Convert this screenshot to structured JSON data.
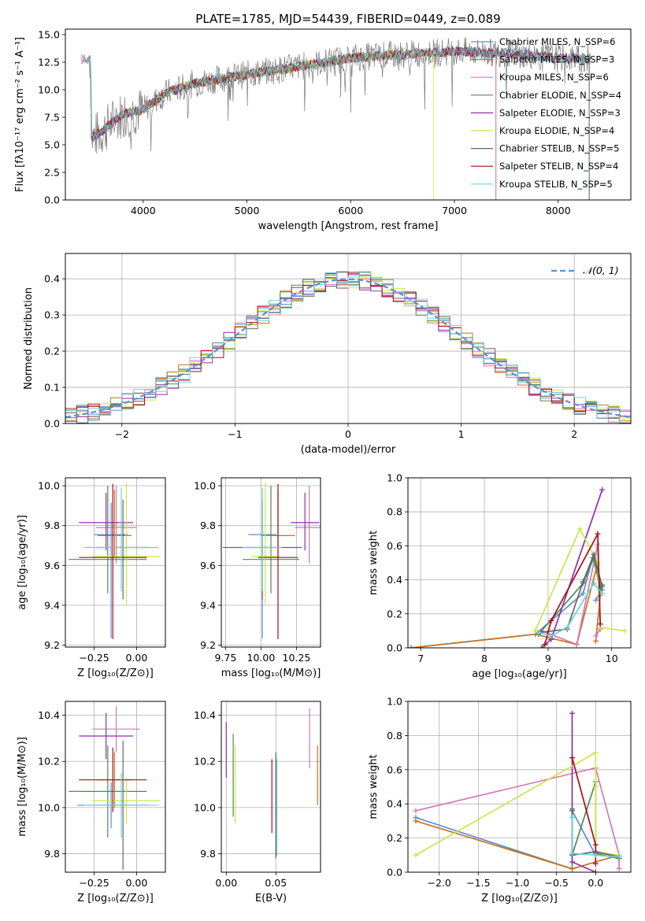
{
  "figure_title": "PLATE=1785, MJD=54439, FIBERID=0449, z=0.089",
  "colors": [
    "#5a8fd6",
    "#c9731e",
    "#d478b5",
    "#4f8c4f",
    "#8f2faa",
    "#c9e84a",
    "#666666",
    "#a50f15",
    "#6fd0d6"
  ],
  "chart_data": [
    {
      "id": "spectrum",
      "type": "line",
      "title": "PLATE=1785, MJD=54439, FIBERID=0449, z=0.089",
      "xlabel": "wavelength [Angstrom, rest frame]",
      "ylabel": "Flux [fλ10⁻¹⁷ erg cm⁻² s⁻¹ A⁻¹]",
      "xlim": [
        3250,
        8700
      ],
      "ylim": [
        0,
        15.5
      ],
      "xticks": [
        4000,
        5000,
        6000,
        7000,
        8000
      ],
      "yticks": [
        0.0,
        2.5,
        5.0,
        7.5,
        10.0,
        12.5,
        15.0
      ],
      "legend_position": "top-right",
      "continuum": {
        "x": [
          3500,
          3600,
          3700,
          3800,
          3900,
          4000,
          4200,
          4500,
          5000,
          5500,
          6000,
          6500,
          7000,
          7500,
          8000,
          8300
        ],
        "y": [
          5.6,
          6.2,
          7.0,
          7.8,
          8.0,
          8.2,
          9.6,
          10.6,
          11.4,
          12.1,
          12.9,
          13.2,
          13.5,
          13.3,
          12.9,
          12.8
        ]
      },
      "series": [
        {
          "name": "Chabrier MILES, N_SSP=6"
        },
        {
          "name": "Salpeter MILES, N_SSP=3"
        },
        {
          "name": "Kroupa MILES, N_SSP=6"
        },
        {
          "name": "Chabrier ELODIE, N_SSP=4"
        },
        {
          "name": "Salpeter ELODIE, N_SSP=3"
        },
        {
          "name": "Kroupa ELODIE, N_SSP=4"
        },
        {
          "name": "Chabrier STELIB, N_SSP=5"
        },
        {
          "name": "Salpeter STELIB, N_SSP=4"
        },
        {
          "name": "Kroupa STELIB, N_SSP=5"
        }
      ],
      "model_endpoints": [
        {
          "x_start": 3400,
          "x_end": 8300
        },
        {
          "x_start": 3400,
          "x_end": 7400
        },
        {
          "x_start": 3400,
          "x_end": 7400
        },
        {
          "x_start": 3500,
          "x_end": 8300
        },
        {
          "x_start": 3500,
          "x_end": 8300
        },
        {
          "x_start": 3900,
          "x_end": 6800
        },
        {
          "x_start": 3450,
          "x_end": 8300
        },
        {
          "x_start": 3500,
          "x_end": 8300
        },
        {
          "x_start": 3450,
          "x_end": 8300
        }
      ]
    },
    {
      "id": "residuals",
      "type": "line",
      "xlabel": "(data-model)/error",
      "ylabel": "Normed distribution",
      "xlim": [
        -2.5,
        2.5
      ],
      "ylim": [
        0,
        0.47
      ],
      "xticks": [
        -2,
        -1,
        0,
        1,
        2
      ],
      "yticks": [
        0.0,
        0.1,
        0.2,
        0.3,
        0.4
      ],
      "grid": true,
      "legend_position": "top-right",
      "reference_curve": {
        "name": "𝒩(0, 1)",
        "mean": 0,
        "sigma": 1
      },
      "bin_width": 0.1
    },
    {
      "id": "age_vs_Z",
      "type": "scatter",
      "xlabel": "Z [log₁₀(Z/Z⊙)]",
      "ylabel": "age  [log₁₀(age/yr)]",
      "xlim": [
        -0.42,
        0.17
      ],
      "ylim": [
        9.19,
        10.04
      ],
      "xticks": [
        -0.25,
        0.0
      ],
      "xtick_labels": [
        "−0.25",
        "0.00"
      ],
      "yticks": [
        9.2,
        9.4,
        9.6,
        9.8,
        10.0
      ],
      "grid": true,
      "points": [
        {
          "x": -0.15,
          "y": 9.755,
          "xerr": 0.1,
          "yerr": [
            0.52,
            0.16
          ]
        },
        {
          "x": -0.13,
          "y": 9.75,
          "xerr": 0.1,
          "yerr": [
            0.11,
            0.23
          ]
        },
        {
          "x": -0.12,
          "y": 9.79,
          "xerr": 0.12,
          "yerr": [
            0.18,
            0.21
          ]
        },
        {
          "x": -0.17,
          "y": 9.63,
          "xerr": 0.23,
          "yerr": [
            0.17,
            0.37
          ]
        },
        {
          "x": -0.18,
          "y": 9.815,
          "xerr": 0.16,
          "yerr": [
            0.14,
            0.15
          ]
        },
        {
          "x": -0.06,
          "y": 9.645,
          "xerr": 0.2,
          "yerr": [
            0.24,
            0.37
          ]
        },
        {
          "x": -0.08,
          "y": 9.69,
          "xerr": 0.16,
          "yerr": [
            0.26,
            0.24
          ]
        },
        {
          "x": -0.14,
          "y": 9.64,
          "xerr": 0.2,
          "yerr": [
            0.41,
            0.37
          ]
        },
        {
          "x": -0.09,
          "y": 9.69,
          "xerr": 0.22,
          "yerr": [
            0.22,
            0.3
          ]
        }
      ]
    },
    {
      "id": "age_vs_mass",
      "type": "scatter",
      "xlabel": "mass [log₁₀(M/M⊙)]",
      "xlim": [
        9.72,
        10.42
      ],
      "ylim": [
        9.19,
        10.04
      ],
      "xticks": [
        9.75,
        10.0,
        10.25
      ],
      "yticks": [
        9.2,
        9.4,
        9.6,
        9.8,
        10.0
      ],
      "grid": true,
      "points": [
        {
          "x": 10.01,
          "y": 9.755,
          "xerr": 0.1,
          "yerr": [
            0.52,
            0.16
          ]
        },
        {
          "x": 10.12,
          "y": 9.75,
          "xerr": 0.12,
          "yerr": [
            0.11,
            0.23
          ]
        },
        {
          "x": 10.34,
          "y": 9.79,
          "xerr": 0.1,
          "yerr": [
            0.18,
            0.21
          ]
        },
        {
          "x": 10.07,
          "y": 9.63,
          "xerr": 0.2,
          "yerr": [
            0.17,
            0.37
          ]
        },
        {
          "x": 10.31,
          "y": 9.815,
          "xerr": 0.1,
          "yerr": [
            0.14,
            0.15
          ]
        },
        {
          "x": 10.03,
          "y": 9.645,
          "xerr": 0.1,
          "yerr": [
            0.24,
            0.37
          ]
        },
        {
          "x": 10.01,
          "y": 9.69,
          "xerr": 0.28,
          "yerr": [
            0.26,
            0.24
          ]
        },
        {
          "x": 10.12,
          "y": 9.64,
          "xerr": 0.14,
          "yerr": [
            0.41,
            0.37
          ]
        },
        {
          "x": 10.01,
          "y": 9.69,
          "xerr": 0.14,
          "yerr": [
            0.22,
            0.3
          ]
        }
      ]
    },
    {
      "id": "mass_weight_vs_age",
      "type": "line",
      "xlabel": "age  [log₁₀(age/yr)]",
      "ylabel": "mass weight",
      "xlim": [
        6.8,
        10.3
      ],
      "ylim": [
        0,
        1.0
      ],
      "xticks": [
        7,
        8,
        9,
        10
      ],
      "yticks": [
        0.0,
        0.2,
        0.4,
        0.6,
        0.8,
        1.0
      ],
      "grid": true,
      "series": [
        {
          "x": [
            6.85,
            8.8,
            9.55,
            9.7,
            9.85,
            9.75
          ],
          "y": [
            0.0,
            0.08,
            0.32,
            0.53,
            0.34,
            0.28
          ]
        },
        {
          "x": [
            6.85,
            8.8,
            9.45,
            9.78,
            9.82,
            9.75
          ],
          "y": [
            0.0,
            0.08,
            0.02,
            0.5,
            0.31,
            0.04
          ]
        },
        {
          "x": [
            8.9,
            9.45,
            9.78,
            9.82,
            9.75
          ],
          "y": [
            0.1,
            0.02,
            0.61,
            0.11,
            0.07
          ]
        },
        {
          "x": [
            8.85,
            9.55,
            9.72,
            9.82,
            9.85
          ],
          "y": [
            0.08,
            0.38,
            0.53,
            0.34,
            0.37
          ]
        },
        {
          "x": [
            8.9,
            9.05,
            9.85
          ],
          "y": [
            0.0,
            0.05,
            0.93
          ]
        },
        {
          "x": [
            8.8,
            9.5,
            9.78,
            9.82,
            10.2
          ],
          "y": [
            0.1,
            0.7,
            0.5,
            0.12,
            0.1
          ]
        },
        {
          "x": [
            8.85,
            9.3,
            9.55,
            9.72,
            9.85
          ],
          "y": [
            0.09,
            0.11,
            0.39,
            0.55,
            0.36
          ]
        },
        {
          "x": [
            8.95,
            9.05,
            9.78,
            9.82
          ],
          "y": [
            0.02,
            0.16,
            0.67,
            0.14
          ]
        },
        {
          "x": [
            8.85,
            9.05,
            9.3,
            9.72,
            9.85
          ],
          "y": [
            0.09,
            0.07,
            0.12,
            0.38,
            0.32
          ]
        }
      ]
    },
    {
      "id": "mass_vs_Z",
      "type": "scatter",
      "xlabel": "Z [log₁₀(Z/Z⊙)]",
      "ylabel": "mass [log₁₀(M/M⊙)]",
      "xlim": [
        -0.42,
        0.17
      ],
      "ylim": [
        9.72,
        10.46
      ],
      "xticks": [
        -0.25,
        0.0
      ],
      "xtick_labels": [
        "−0.25",
        "0.00"
      ],
      "yticks": [
        9.8,
        10.0,
        10.2,
        10.4
      ],
      "grid": true,
      "points": [
        {
          "x": -0.15,
          "y": 10.01,
          "xerr": 0.2,
          "yerr": [
            0.1,
            0.1
          ]
        },
        {
          "x": -0.13,
          "y": 10.12,
          "xerr": 0.1,
          "yerr": [
            0.12,
            0.12
          ]
        },
        {
          "x": -0.12,
          "y": 10.34,
          "xerr": 0.14,
          "yerr": [
            0.1,
            0.1
          ]
        },
        {
          "x": -0.17,
          "y": 10.07,
          "xerr": 0.23,
          "yerr": [
            0.2,
            0.2
          ]
        },
        {
          "x": -0.18,
          "y": 10.31,
          "xerr": 0.16,
          "yerr": [
            0.1,
            0.1
          ]
        },
        {
          "x": -0.06,
          "y": 10.03,
          "xerr": 0.2,
          "yerr": [
            0.1,
            0.1
          ]
        },
        {
          "x": -0.08,
          "y": 10.01,
          "xerr": 0.16,
          "yerr": [
            0.28,
            0.28
          ]
        },
        {
          "x": -0.14,
          "y": 10.12,
          "xerr": 0.2,
          "yerr": [
            0.14,
            0.14
          ]
        },
        {
          "x": -0.09,
          "y": 10.01,
          "xerr": 0.22,
          "yerr": [
            0.14,
            0.14
          ]
        }
      ]
    },
    {
      "id": "mass_vs_EBV",
      "type": "scatter",
      "xlabel": "E(B-V)",
      "xlim": [
        -0.005,
        0.095
      ],
      "ylim": [
        9.72,
        10.46
      ],
      "xticks": [
        0.0,
        0.05
      ],
      "xtick_labels": [
        "0.00",
        "0.05"
      ],
      "yticks": [
        9.8,
        10.0,
        10.2,
        10.4
      ],
      "grid": true,
      "points": [
        {
          "x": 0.05,
          "y": 10.01,
          "yerr": [
            0.22,
            0.22
          ]
        },
        {
          "x": 0.092,
          "y": 10.14,
          "yerr": [
            0.13,
            0.13
          ]
        },
        {
          "x": 0.084,
          "y": 10.3,
          "yerr": [
            0.13,
            0.13
          ]
        },
        {
          "x": 0.007,
          "y": 10.14,
          "yerr": [
            0.18,
            0.18
          ]
        },
        {
          "x": 0.0,
          "y": 10.25,
          "yerr": [
            0.12,
            0.12
          ]
        },
        {
          "x": 0.009,
          "y": 10.1,
          "yerr": [
            0.17,
            0.17
          ]
        },
        {
          "x": 0.05,
          "y": 10.01,
          "yerr": [
            0.23,
            0.23
          ]
        },
        {
          "x": 0.046,
          "y": 10.05,
          "yerr": [
            0.16,
            0.16
          ]
        },
        {
          "x": 0.051,
          "y": 10.0,
          "yerr": [
            0.21,
            0.21
          ]
        }
      ]
    },
    {
      "id": "mass_weight_vs_Z",
      "type": "line",
      "xlabel": "Z [log₁₀(Z/Z⊙)]",
      "ylabel": "mass weight",
      "xlim": [
        -2.4,
        0.45
      ],
      "ylim": [
        0,
        1.0
      ],
      "xticks": [
        -2.0,
        -1.5,
        -1.0,
        -0.5,
        0.0
      ],
      "xtick_labels": [
        "−2.0",
        "−1.5",
        "−1.0",
        "−0.5",
        "0.0"
      ],
      "yticks": [
        0.0,
        0.2,
        0.4,
        0.6,
        0.8,
        1.0
      ],
      "grid": true,
      "series": [
        {
          "x": [
            -2.3,
            -0.3,
            -0.3,
            0.0,
            0.3
          ],
          "y": [
            0.32,
            0.02,
            0.36,
            0.1,
            0.09
          ]
        },
        {
          "x": [
            -2.3,
            -0.3,
            0.3,
            0.3
          ],
          "y": [
            0.3,
            0.02,
            0.1,
            0.08
          ]
        },
        {
          "x": [
            -2.3,
            0.0,
            0.3,
            0.3
          ],
          "y": [
            0.36,
            0.61,
            0.1,
            0.02
          ]
        },
        {
          "x": [
            -0.3,
            -0.3,
            0.0,
            0.0,
            0.3
          ],
          "y": [
            0.37,
            0.1,
            0.53,
            0.11,
            0.08
          ]
        },
        {
          "x": [
            -0.3,
            -0.3,
            0.0
          ],
          "y": [
            0.93,
            0.06,
            0.0
          ]
        },
        {
          "x": [
            -2.3,
            0.0,
            0.0,
            0.0,
            0.3
          ],
          "y": [
            0.1,
            0.7,
            0.5,
            0.12,
            0.1
          ]
        },
        {
          "x": [
            -0.3,
            -0.3,
            0.0,
            0.3
          ],
          "y": [
            0.36,
            0.1,
            0.12,
            0.09
          ]
        },
        {
          "x": [
            -0.3,
            0.0,
            0.0
          ],
          "y": [
            0.67,
            0.16,
            0.05
          ]
        },
        {
          "x": [
            -0.3,
            -0.3,
            0.0,
            0.3
          ],
          "y": [
            0.32,
            0.11,
            0.1,
            0.09
          ]
        }
      ]
    }
  ]
}
